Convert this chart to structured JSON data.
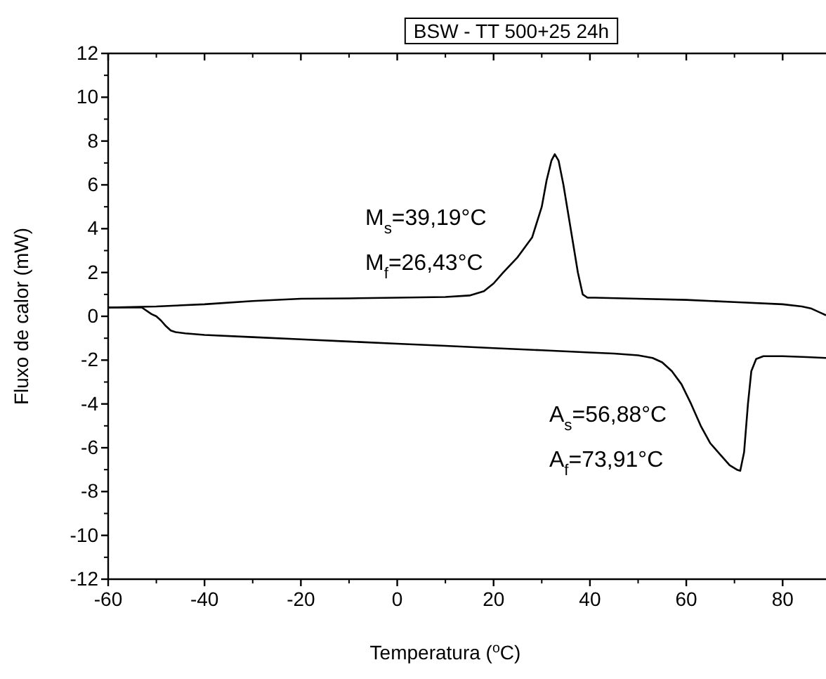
{
  "chart_data": {
    "type": "line",
    "title": "BSW - TT 500+25 24h",
    "xlabel": "Temperatura ($^{o}$C)",
    "ylabel": "Fluxo de calor (mW)",
    "annotations": [
      "M$_{s}$=39,19°C",
      "M$_{f}$=26,43°C",
      "A$_{s}$=56,88°C",
      "A$_{f}$=73,91°C"
    ],
    "xlim": [
      -60,
      89
    ],
    "xticks": [
      -60,
      -40,
      -20,
      0,
      20,
      40,
      60,
      80
    ],
    "ylim": [
      -12,
      12
    ],
    "yticks": [
      -12,
      -10,
      -8,
      -6,
      -4,
      -2,
      0,
      2,
      4,
      6,
      8,
      10,
      12
    ],
    "marker": "none",
    "line_style": "solid",
    "series": [
      {
        "color": "#000000",
        "x": [
          -60,
          -50,
          -40,
          -30,
          -20,
          -10,
          0,
          10,
          15,
          18,
          20,
          22,
          25,
          28,
          30,
          31,
          32,
          32.7,
          33.5,
          34.5,
          36,
          37.5,
          38.5,
          39.5,
          41,
          50,
          60,
          70,
          80,
          84,
          86,
          88,
          89
        ],
        "values": [
          0.4,
          0.45,
          0.55,
          0.7,
          0.8,
          0.82,
          0.85,
          0.88,
          0.95,
          1.15,
          1.5,
          2.0,
          2.7,
          3.6,
          5.0,
          6.2,
          7.1,
          7.4,
          7.1,
          6.0,
          4.0,
          2.0,
          1.0,
          0.85,
          0.85,
          0.8,
          0.75,
          0.65,
          0.55,
          0.45,
          0.35,
          0.15,
          0.05
        ]
      },
      {
        "color": "#000000",
        "x": [
          -60,
          -53,
          -51,
          -50,
          -49,
          -48,
          -47,
          -46,
          -44,
          -40,
          -30,
          -20,
          -10,
          0,
          10,
          20,
          30,
          40,
          45,
          50,
          53,
          55,
          57,
          59,
          61,
          63,
          65,
          67,
          69,
          70.5,
          71.2,
          72,
          72.8,
          73.5,
          74.5,
          76,
          80,
          85,
          89
        ],
        "values": [
          0.4,
          0.4,
          0.1,
          0.0,
          -0.2,
          -0.45,
          -0.65,
          -0.72,
          -0.78,
          -0.85,
          -0.95,
          -1.05,
          -1.15,
          -1.25,
          -1.35,
          -1.45,
          -1.55,
          -1.65,
          -1.7,
          -1.78,
          -1.9,
          -2.1,
          -2.5,
          -3.1,
          -4.0,
          -5.0,
          -5.8,
          -6.3,
          -6.8,
          -7.0,
          -7.05,
          -6.2,
          -4.0,
          -2.5,
          -1.95,
          -1.82,
          -1.82,
          -1.86,
          -1.9
        ]
      }
    ]
  }
}
